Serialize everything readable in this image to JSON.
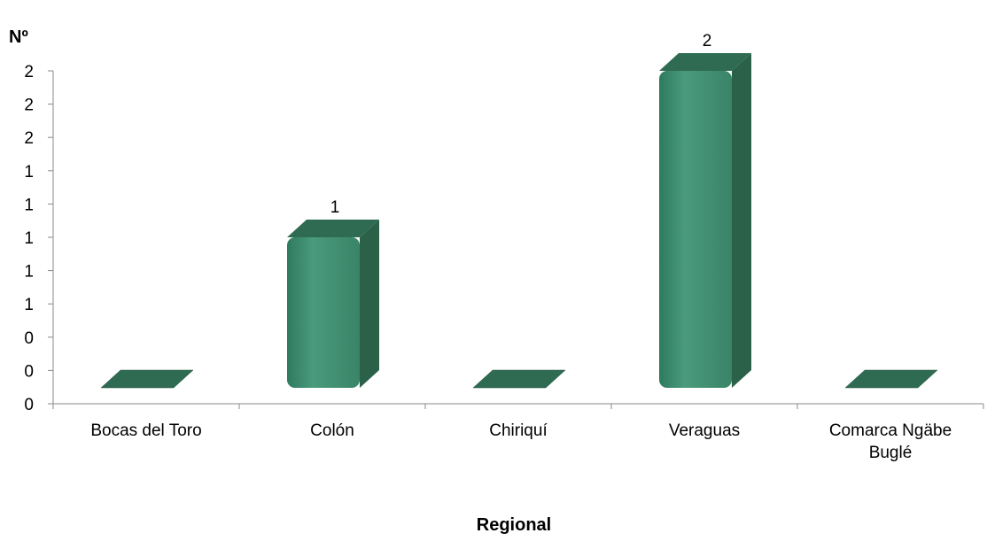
{
  "chart_data": {
    "type": "bar",
    "style": "3d-rounded-column",
    "ylabel": "Nº",
    "xlabel": "Regional",
    "categories": [
      "Bocas del Toro",
      "Colón",
      "Chiriquí",
      "Veraguas",
      "Comarca Ngäbe Buglé"
    ],
    "values": [
      0,
      1,
      0,
      2,
      0
    ],
    "data_labels": [
      "",
      "1",
      "",
      "2",
      ""
    ],
    "ylim": [
      0,
      2
    ],
    "y_ticks": [
      0,
      0.2,
      0.4,
      0.6,
      0.8,
      1.0,
      1.2,
      1.4,
      1.6,
      1.8,
      2.0
    ],
    "y_tick_labels": [
      "0",
      "0",
      "0",
      "1",
      "1",
      "1",
      "1",
      "1",
      "2",
      "2",
      "2"
    ],
    "grid": false,
    "legend": "none",
    "colors": {
      "front": "#3f8f72",
      "side": "#2b6049",
      "top": "#2f6b52"
    }
  }
}
